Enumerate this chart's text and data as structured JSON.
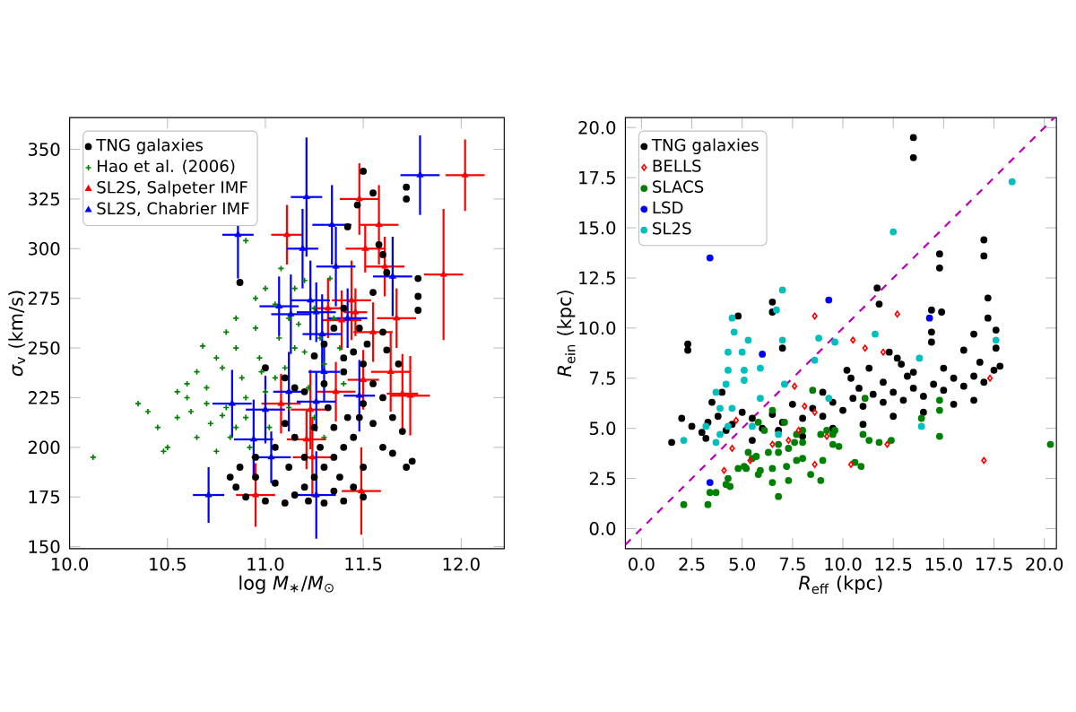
{
  "chart_data": [
    {
      "type": "scatter",
      "xlabel": "log *M*$_{∗}$/*M*$_{⊙}$",
      "ylabel": "*σ*$_{v}$ (km/s)",
      "xlim": [
        10.0,
        12.22
      ],
      "ylim": [
        149,
        366
      ],
      "xticks": [
        {
          "value": 10,
          "label": "10.0"
        },
        {
          "value": 10.5,
          "label": "10.5"
        },
        {
          "value": 11,
          "label": "11.0"
        },
        {
          "value": 11.5,
          "label": "11.5"
        },
        {
          "value": 12,
          "label": "12.0"
        }
      ],
      "yticks": [
        150,
        175,
        200,
        225,
        250,
        275,
        300,
        325,
        350
      ],
      "legend": "top left",
      "series": [
        {
          "name": "TNG galaxies",
          "color": "#000000",
          "marker": "circle",
          "x": [
            10.87,
            11.5,
            11.47,
            11.55,
            11.72,
            11.72,
            11.78,
            11.78,
            11.78,
            11.58,
            11.6,
            11.55,
            11.6,
            11.62,
            11.45,
            11.4,
            11.35,
            11.3,
            11.25,
            11.42,
            11.0,
            11.1,
            11.15,
            11.2,
            11.3,
            11.4,
            11.5,
            11.55,
            11.6,
            11.65,
            11.7,
            11.65,
            11.72,
            11.75,
            11.48,
            11.45,
            11.4,
            11.35,
            11.3,
            11.25,
            11.2,
            11.15,
            11.1,
            11.0,
            10.9,
            10.85,
            10.82,
            10.87,
            10.95,
            11.05,
            11.12,
            11.2,
            11.28,
            11.35,
            11.42,
            11.5,
            11.55,
            11.38,
            11.45,
            11.5,
            11.3,
            11.4,
            11.05,
            11.15,
            11.25,
            11.32,
            10.95,
            11.1,
            11.22,
            11.35,
            11.6,
            11.5,
            11.48,
            11.52,
            11.68,
            11.62,
            11.4
          ],
          "values": [
            283,
            339,
            322,
            328,
            331,
            325,
            285,
            276,
            269,
            302,
            297,
            278,
            258,
            249,
            248,
            245,
            260,
            252,
            246,
            311,
            240,
            235,
            230,
            228,
            232,
            238,
            242,
            232,
            225,
            215,
            208,
            197,
            190,
            193,
            215,
            205,
            200,
            195,
            190,
            185,
            180,
            176,
            172,
            173,
            175,
            180,
            185,
            190,
            185,
            182,
            190,
            195,
            200,
            210,
            215,
            222,
            212,
            185,
            180,
            175,
            172,
            173,
            200,
            205,
            210,
            220,
            195,
            212,
            173,
            178,
            200,
            190,
            260,
            252,
            242,
            288,
            270
          ]
        },
        {
          "name": "Hao et al. (2006)",
          "color": "#008000",
          "marker": "cross",
          "x": [
            10.12,
            10.35,
            10.4,
            10.45,
            10.5,
            10.48,
            10.55,
            10.6,
            10.65,
            10.7,
            10.72,
            10.75,
            10.78,
            10.8,
            10.82,
            10.85,
            10.88,
            10.9,
            10.92,
            10.95,
            10.97,
            11.0,
            11.02,
            11.05,
            11.07,
            11.1,
            11.12,
            11.15,
            11.17,
            11.2,
            11.22,
            11.25,
            11.28,
            11.3,
            11.33,
            11.35,
            11.38,
            11.4,
            10.9,
            11.0,
            10.95,
            10.85,
            10.8,
            10.68,
            10.75,
            10.65,
            10.6,
            10.55,
            10.9,
            11.05,
            11.15,
            11.25,
            11.3,
            10.85,
            10.78,
            10.98,
            11.08,
            11.2,
            10.7,
            11.12,
            10.62
          ],
          "values": [
            195,
            222,
            218,
            210,
            200,
            198,
            215,
            225,
            205,
            230,
            212,
            198,
            240,
            220,
            205,
            250,
            235,
            215,
            200,
            260,
            245,
            228,
            210,
            272,
            255,
            240,
            220,
            280,
            262,
            248,
            230,
            270,
            255,
            242,
            285,
            265,
            250,
            232,
            304,
            280,
            275,
            265,
            258,
            251,
            245,
            238,
            232,
            228,
            225,
            235,
            250,
            215,
            205,
            210,
            216,
            238,
            290,
            284,
            222,
            265,
            218
          ]
        },
        {
          "name": "SL2S, Salpeter IMF",
          "color": "#ff0000",
          "marker": "triangle",
          "x": [
            12.02,
            11.11,
            11.48,
            11.51,
            11.58,
            11.61,
            11.91,
            11.32,
            11.44,
            11.46,
            11.39,
            11.67,
            11.55,
            11.64,
            11.36,
            11.7,
            11.74,
            11.08,
            11.23,
            11.21,
            11.24,
            11.49,
            10.95,
            11.5
          ],
          "values": [
            337,
            307,
            325,
            300,
            312,
            291,
            287,
            270,
            274,
            268,
            264,
            265,
            258,
            238,
            228,
            227,
            226,
            222,
            219,
            204,
            195,
            178,
            176,
            234
          ],
          "xerrors": [
            0.1,
            0.08,
            0.1,
            0.1,
            0.1,
            0.1,
            0.1,
            0.08,
            0.1,
            0.06,
            0.1,
            0.1,
            0.1,
            0.1,
            0.1,
            0.08,
            0.1,
            0.1,
            0.1,
            0.1,
            0.1,
            0.1,
            0.1,
            0.08
          ],
          "errors": [
            18,
            15,
            18,
            12,
            20,
            15,
            33,
            15,
            20,
            12,
            15,
            15,
            15,
            20,
            15,
            20,
            20,
            15,
            20,
            15,
            20,
            22,
            16,
            15
          ]
        },
        {
          "name": "SL2S, Chabrier IMF",
          "color": "#0000ff",
          "marker": "triangle",
          "x": [
            10.86,
            11.21,
            11.19,
            11.34,
            11.36,
            11.65,
            11.79,
            11.07,
            11.13,
            11.23,
            11.26,
            11.29,
            11.42,
            10.83,
            11.0,
            10.94,
            11.03,
            11.12,
            11.26,
            11.3,
            11.48,
            10.71,
            11.26
          ],
          "values": [
            307,
            326,
            300,
            312,
            291,
            286,
            337,
            271,
            267,
            274,
            268,
            257,
            265,
            222,
            219,
            204,
            195,
            228,
            223,
            238,
            226,
            176,
            176
          ],
          "xerrors": [
            0.08,
            0.08,
            0.08,
            0.1,
            0.1,
            0.1,
            0.1,
            0.1,
            0.1,
            0.1,
            0.1,
            0.1,
            0.1,
            0.1,
            0.1,
            0.1,
            0.1,
            0.08,
            0.1,
            0.08,
            0.08,
            0.08,
            0.1
          ],
          "errors": [
            22,
            30,
            20,
            20,
            20,
            20,
            20,
            15,
            20,
            20,
            15,
            20,
            15,
            17,
            17,
            20,
            13,
            20,
            15,
            15,
            18,
            14,
            22
          ]
        }
      ]
    },
    {
      "type": "scatter",
      "xlabel": "*R*$_{eff}$ (kpc)",
      "ylabel": "*R*$_{ein}$ (kpc)",
      "xlim": [
        -0.8,
        20.6
      ],
      "ylim": [
        -1,
        20.5
      ],
      "xticks": [
        {
          "value": 0,
          "label": "0.0"
        },
        {
          "value": 2.5,
          "label": "2.5"
        },
        {
          "value": 5,
          "label": "5.0"
        },
        {
          "value": 7.5,
          "label": "7.5"
        },
        {
          "value": 10,
          "label": "10.0"
        },
        {
          "value": 12.5,
          "label": "12.5"
        },
        {
          "value": 15,
          "label": "15.0"
        },
        {
          "value": 17.5,
          "label": "17.5"
        },
        {
          "value": 20,
          "label": "20.0"
        }
      ],
      "yticks": [
        {
          "value": 0,
          "label": "0.0"
        },
        {
          "value": 2.5,
          "label": "2.5"
        },
        {
          "value": 5,
          "label": "5.0"
        },
        {
          "value": 7.5,
          "label": "7.5"
        },
        {
          "value": 10,
          "label": "10.0"
        },
        {
          "value": 12.5,
          "label": "12.5"
        },
        {
          "value": 15,
          "label": "15.0"
        },
        {
          "value": 17.5,
          "label": "17.5"
        },
        {
          "value": 20,
          "label": "20.0"
        }
      ],
      "legend": "top left",
      "series": [
        {
          "name": "TNG galaxies",
          "color": "#000000",
          "marker": "circle",
          "x": [
            1.5,
            2.0,
            2.5,
            3.0,
            3.3,
            3.8,
            4.2,
            4.5,
            5.0,
            5.5,
            6.0,
            6.5,
            7.0,
            7.5,
            8.0,
            8.5,
            9.0,
            9.5,
            10.0,
            10.5,
            11.0,
            11.5,
            12.0,
            12.5,
            13.0,
            13.5,
            14.0,
            14.5,
            15.0,
            15.5,
            16.0,
            16.5,
            17.0,
            17.5,
            17.8,
            2.3,
            2.3,
            4.8,
            6.5,
            6.5,
            7.0,
            10.2,
            10.4,
            11.7,
            11.8,
            12.7,
            12.9,
            13.5,
            14.8,
            14.8,
            14.4,
            14.9,
            14.4,
            14.4,
            17.0,
            17.0,
            17.2,
            17.2,
            17.6,
            17.6,
            13.5,
            13.5,
            16.0,
            16.5,
            9.5,
            8.0,
            11.0,
            12.5,
            14.0,
            15.5,
            16.5,
            5.5,
            6.8,
            3.2,
            9.0,
            10.8,
            12.0,
            13.2,
            15.0,
            16.8,
            11.3,
            12.3,
            3.5,
            4.0
          ],
          "values": [
            4.3,
            5.5,
            5.1,
            4.8,
            5.3,
            5.6,
            4.9,
            5.2,
            5.8,
            5.5,
            5.0,
            5.7,
            5.3,
            6.2,
            5.5,
            6.0,
            5.6,
            6.3,
            5.9,
            6.5,
            6.1,
            6.7,
            6.3,
            6.8,
            6.4,
            7.0,
            6.6,
            7.2,
            6.9,
            7.5,
            7.1,
            7.6,
            7.3,
            7.9,
            8.1,
            9.2,
            8.9,
            10.6,
            11.3,
            10.8,
            9.0,
            7.9,
            7.5,
            12.0,
            11.2,
            8.5,
            8.2,
            7.8,
            13.7,
            13.0,
            10.9,
            10.8,
            9.8,
            9.3,
            14.4,
            13.6,
            11.5,
            10.5,
            9.9,
            9.0,
            19.5,
            18.5,
            8.9,
            9.7,
            5.0,
            4.6,
            5.2,
            5.6,
            5.8,
            6.2,
            6.4,
            4.4,
            4.9,
            4.5,
            6.8,
            7.0,
            7.3,
            7.6,
            8.0,
            8.3,
            8.0,
            8.8,
            6.3,
            6.8
          ]
        },
        {
          "name": "BELLS",
          "color": "#ff0000",
          "marker": "diamond",
          "x": [
            8.6,
            12.7,
            10.5,
            11.1,
            12.0,
            7.6,
            8.1,
            8.6,
            4.7,
            4.5,
            4.1,
            5.4,
            6.5,
            7.3,
            7.8,
            8.6,
            9.2,
            10.4,
            12.2,
            17.0,
            17.3
          ],
          "values": [
            10.6,
            10.7,
            9.4,
            9.0,
            8.8,
            7.1,
            6.1,
            5.8,
            5.4,
            4.0,
            2.9,
            3.4,
            4.2,
            4.4,
            4.9,
            3.2,
            4.6,
            3.2,
            4.2,
            3.4,
            7.5
          ]
        },
        {
          "name": "SLACS",
          "color": "#008000",
          "marker": "circle",
          "x": [
            2.1,
            3.3,
            3.4,
            3.7,
            4.2,
            4.3,
            4.4,
            5.1,
            4.8,
            5.2,
            5.5,
            5.7,
            5.3,
            5.8,
            5.9,
            6.5,
            6.5,
            6.8,
            7.3,
            7.2,
            7.7,
            8.0,
            8.4,
            8.9,
            9.0,
            9.5,
            9.8,
            10.6,
            10.9,
            11.0,
            11.3,
            11.1,
            11.8,
            12.4,
            13.9,
            14.8,
            14.8,
            14.8,
            8.5,
            8.0,
            8.0,
            7.7,
            7.1,
            7.6,
            8.9,
            9.2,
            9.5,
            9.6,
            6.5,
            6.1,
            6.8,
            7.3,
            6.3,
            6.8,
            5.8,
            20.3
          ],
          "values": [
            1.2,
            1.2,
            1.8,
            1.8,
            2.2,
            2.5,
            2.1,
            3.1,
            3.0,
            3.0,
            3.5,
            3.6,
            3.8,
            2.7,
            2.9,
            3.0,
            2.3,
            1.6,
            2.4,
            3.1,
            3.4,
            3.5,
            2.7,
            2.4,
            3.4,
            4.2,
            4.1,
            3.3,
            3.1,
            4.7,
            4.4,
            6.5,
            4.3,
            4.4,
            5.5,
            6.4,
            4.6,
            5.9,
            6.9,
            4.9,
            4.3,
            4.7,
            5.3,
            4.3,
            4.7,
            4.9,
            4.7,
            4.9,
            5.9,
            4.9,
            4.2,
            4.0,
            3.8,
            3.8,
            5.3,
            4.2
          ]
        },
        {
          "name": "LSD",
          "color": "#0000ff",
          "marker": "circle",
          "x": [
            3.4,
            9.3,
            14.3,
            6.0,
            3.4
          ],
          "values": [
            13.5,
            11.4,
            10.5,
            8.7,
            2.3
          ]
        },
        {
          "name": "SL2S",
          "color": "#00bfbf",
          "marker": "circle",
          "x": [
            18.4,
            12.5,
            7.0,
            6.7,
            4.5,
            4.6,
            5.3,
            7.0,
            8.8,
            9.6,
            11.6,
            4.3,
            5.0,
            5.9,
            4.3,
            8.6,
            13.8,
            17.6,
            5.1,
            4.2,
            5.1,
            3.7,
            3.9,
            4.5,
            5.9,
            7.1,
            4.3,
            3.9,
            3.2,
            3.7,
            2.1,
            5.5,
            9.3,
            13.9,
            6.8
          ],
          "values": [
            17.3,
            14.8,
            11.9,
            10.9,
            10.5,
            9.8,
            9.4,
            9.4,
            9.5,
            9.3,
            9.7,
            8.8,
            8.8,
            8.0,
            7.9,
            8.4,
            8.5,
            9.4,
            7.9,
            7.2,
            7.4,
            6.8,
            6.0,
            6.0,
            6.5,
            7.2,
            5.1,
            4.7,
            5.1,
            4.3,
            4.4,
            5.1,
            6.5,
            5.1,
            4.7
          ]
        },
        {
          "type": "line",
          "color": "#bf00bf",
          "line_style": "dashed",
          "marker": "none",
          "x": [
            -0.8,
            20.5
          ],
          "values": [
            -0.8,
            20.5
          ]
        }
      ]
    }
  ]
}
